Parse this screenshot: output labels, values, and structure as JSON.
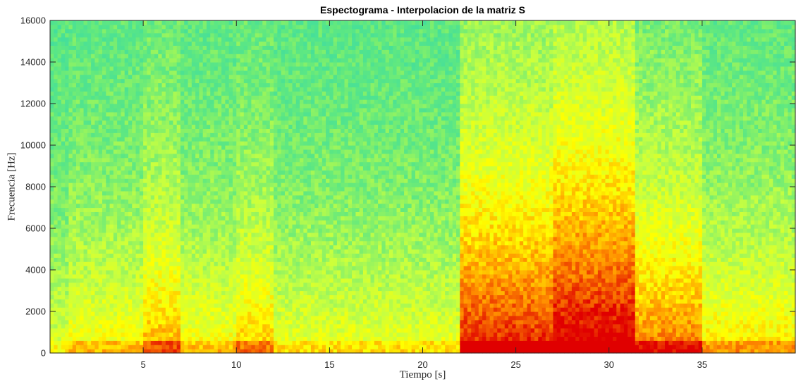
{
  "chart_data": {
    "type": "heatmap",
    "title": "Espectograma - Interpolacion de la matriz S",
    "xlabel": "Tiempo [s]",
    "ylabel": "Frecuencia [Hz]",
    "xlim": [
      0,
      40
    ],
    "ylim": [
      0,
      16000
    ],
    "xticks": [
      5,
      10,
      15,
      20,
      25,
      30,
      35
    ],
    "yticks": [
      0,
      2000,
      4000,
      6000,
      8000,
      10000,
      12000,
      14000,
      16000
    ],
    "colormap": "jet",
    "colormap_range_shown": [
      "#25d9b8",
      "#c0ff3f",
      "#ffff00",
      "#ff8000",
      "#e60000"
    ],
    "grid": false,
    "legend": "none",
    "energy_profile_by_time": [
      {
        "t_start": 0,
        "t_end": 1,
        "level": 0.35
      },
      {
        "t_start": 1,
        "t_end": 5,
        "level": 0.45
      },
      {
        "t_start": 5,
        "t_end": 7,
        "level": 0.6
      },
      {
        "t_start": 7,
        "t_end": 10,
        "level": 0.45
      },
      {
        "t_start": 10,
        "t_end": 12,
        "level": 0.55
      },
      {
        "t_start": 12,
        "t_end": 22,
        "level": 0.4
      },
      {
        "t_start": 22,
        "t_end": 27,
        "level": 0.85
      },
      {
        "t_start": 27,
        "t_end": 31.5,
        "level": 0.95
      },
      {
        "t_start": 31.5,
        "t_end": 35,
        "level": 0.7
      },
      {
        "t_start": 35,
        "t_end": 40,
        "level": 0.5
      }
    ]
  }
}
